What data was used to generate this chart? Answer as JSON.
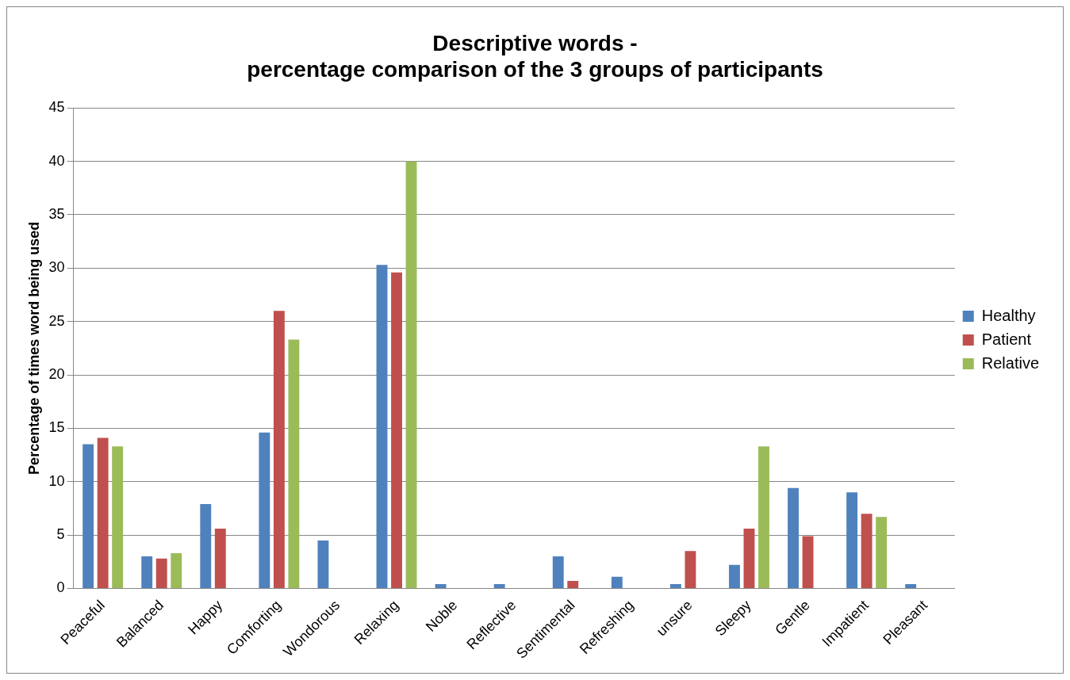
{
  "chart_data": {
    "type": "bar",
    "title": "Descriptive words -\npercentage comparison of the 3 groups of participants",
    "ylabel": "Percentage of times word being used",
    "categories": [
      "Peaceful",
      "Balanced",
      "Happy",
      "Comforting",
      "Wondorous",
      "Relaxing",
      "Noble",
      "Reflective",
      "Sentimental",
      "Refreshing",
      "unsure",
      "Sleepy",
      "Gentle",
      "Impatient",
      "Pleasant"
    ],
    "series": [
      {
        "name": "Healthy",
        "color": "#4f81bd",
        "values": [
          13.5,
          3.0,
          7.9,
          14.6,
          4.5,
          30.3,
          0.4,
          0.4,
          3.0,
          1.1,
          0.4,
          2.2,
          9.4,
          9.0,
          0.4
        ]
      },
      {
        "name": "Patient",
        "color": "#c0504d",
        "values": [
          14.1,
          2.8,
          5.6,
          26.0,
          0,
          29.6,
          0,
          0,
          0.7,
          0,
          3.5,
          5.6,
          4.9,
          7.0,
          0
        ]
      },
      {
        "name": "Relative",
        "color": "#9bbb59",
        "values": [
          13.3,
          3.3,
          0,
          23.3,
          0,
          40.0,
          0,
          0,
          0,
          0,
          0,
          13.3,
          0,
          6.7,
          0
        ]
      }
    ],
    "ylim": [
      0,
      45
    ],
    "yticks": [
      0,
      5,
      10,
      15,
      20,
      25,
      30,
      35,
      40,
      45
    ],
    "grid": "y",
    "legend": "right"
  }
}
